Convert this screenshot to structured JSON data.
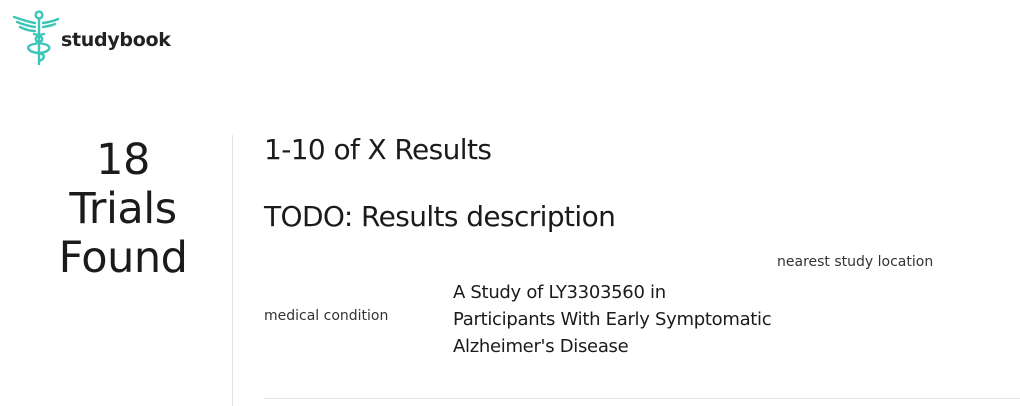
{
  "brand": {
    "name": "studybook",
    "accent_color": "#3cc6b8",
    "logo_icon": "caduceus-icon"
  },
  "summary": {
    "count": "18",
    "line2": "Trials",
    "line3": "Found"
  },
  "results": {
    "range_text": "1-10 of X Results",
    "description": "TODO: Results description"
  },
  "columns": {
    "condition_label": "medical condition",
    "location_label": "nearest study location"
  },
  "trials": [
    {
      "title": "A Study of LY3303560 in Participants With Early Symptomatic Alzheimer's Disease"
    }
  ]
}
